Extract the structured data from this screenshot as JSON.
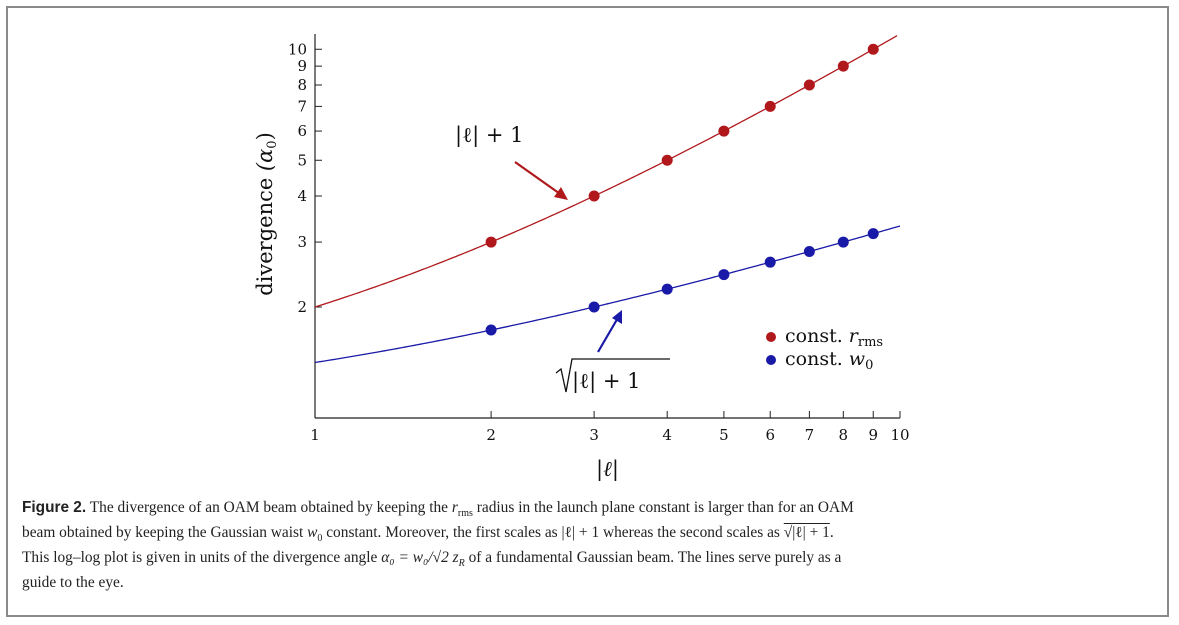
{
  "chart_data": {
    "type": "line",
    "scale": "log-log",
    "xlabel": "|ℓ|",
    "ylabel": "divergence",
    "ylabel_unit": "(α",
    "ylabel_unit_sub": "0",
    "ylabel_unit_close": ")",
    "xlim": [
      1,
      10
    ],
    "ylim": [
      1,
      11
    ],
    "x_ticks": [
      1,
      2,
      3,
      4,
      5,
      6,
      7,
      8,
      9,
      10
    ],
    "x_tick_labels": [
      "1",
      "2",
      "3",
      "4",
      "5",
      "6",
      "7",
      "8",
      "9",
      "10"
    ],
    "y_ticks": [
      2,
      3,
      4,
      5,
      6,
      7,
      8,
      9,
      10
    ],
    "y_tick_labels": [
      "2",
      "3",
      "4",
      "5",
      "6",
      "7",
      "8",
      "9",
      "10"
    ],
    "series": [
      {
        "name": "const. r",
        "name_sub": "rms",
        "color": "#b0181c",
        "curve": "|ℓ| + 1",
        "x": [
          2,
          3,
          4,
          5,
          6,
          7,
          8,
          9
        ],
        "y": [
          3,
          4,
          5,
          6,
          7,
          8,
          9,
          10
        ]
      },
      {
        "name": "const. w",
        "name_sub": "0",
        "color": "#1a1aa8",
        "curve": "sqrt(|ℓ| + 1)",
        "x": [
          2,
          3,
          4,
          5,
          6,
          7,
          8,
          9
        ],
        "y": [
          1.732,
          2.0,
          2.236,
          2.449,
          2.646,
          2.828,
          3.0,
          3.162
        ]
      }
    ],
    "annotations": [
      {
        "text": "|ℓ| + 1",
        "target_series": 0
      },
      {
        "text": "|ℓ| + 1",
        "radical": true,
        "target_series": 1
      }
    ],
    "legend_position": "lower-right"
  },
  "caption": {
    "label": "Figure 2.",
    "line1_a": "The divergence of an OAM beam obtained by keeping the",
    "line1_r": "r",
    "line1_rsub": "rms",
    "line1_b": "radius in the launch plane constant is larger than for an OAM",
    "line2_a": "beam obtained by keeping the Gaussian waist",
    "line2_w": "w",
    "line2_wsub": "0",
    "line2_b": "constant. Moreover, the first scales as",
    "line2_expr1": "|ℓ| + 1",
    "line2_c": "whereas the second scales as",
    "line2_expr2": "√|ℓ| + 1",
    "line2_end": ".",
    "line3_a": "This log–log plot is given in units of the divergence angle",
    "line3_formula": "α₀ = w₀/√2 z",
    "line3_formula_sub": "R",
    "line3_b": "of a fundamental Gaussian beam. The lines serve purely as a",
    "line4": "guide to the eye."
  }
}
